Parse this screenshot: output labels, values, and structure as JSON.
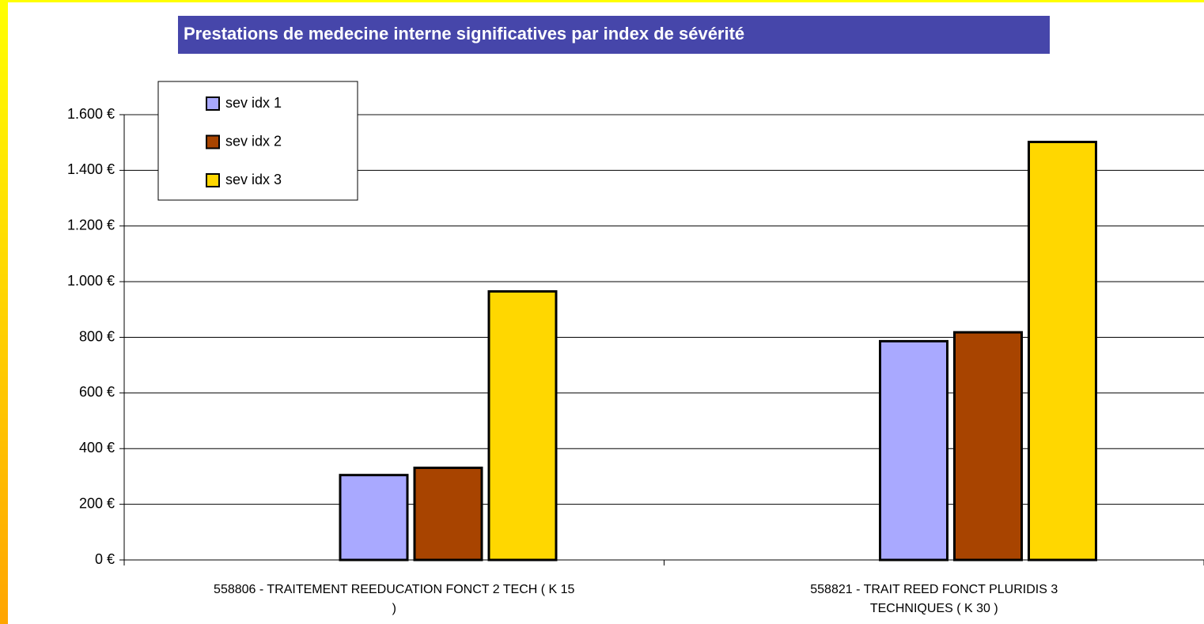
{
  "chart_data": {
    "type": "bar",
    "title": "Prestations de medecine interne significatives par index de sévérité",
    "categories": [
      "558806  -  TRAITEMENT REEDUCATION FONCT 2 TECH ( K 15 )",
      "558821  -  TRAIT REED FONCT PLURIDIS 3 TECHNIQUES  ( K 30 )"
    ],
    "series": [
      {
        "name": "sev idx 1",
        "color": "#a9a9ff",
        "values": [
          305,
          786
        ]
      },
      {
        "name": "sev idx 2",
        "color": "#a84400",
        "values": [
          331,
          818
        ]
      },
      {
        "name": "sev idx 3",
        "color": "#ffd700",
        "values": [
          965,
          1502
        ]
      }
    ],
    "ylim": [
      0,
      1600
    ],
    "yticks": [
      {
        "value": 0,
        "label": "0 €"
      },
      {
        "value": 200,
        "label": "200 €"
      },
      {
        "value": 400,
        "label": "400 €"
      },
      {
        "value": 600,
        "label": "600 €"
      },
      {
        "value": 800,
        "label": "800 €"
      },
      {
        "value": 1000,
        "label": "1.000 €"
      },
      {
        "value": 1200,
        "label": "1.200 €"
      },
      {
        "value": 1400,
        "label": "1.400 €"
      },
      {
        "value": 1600,
        "label": "1.600 €"
      }
    ],
    "grid": true,
    "legend": "top-left"
  }
}
